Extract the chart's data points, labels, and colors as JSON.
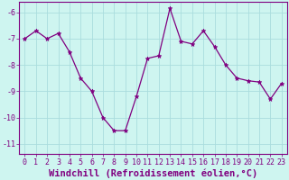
{
  "x": [
    0,
    1,
    2,
    3,
    4,
    5,
    6,
    7,
    8,
    9,
    10,
    11,
    12,
    13,
    14,
    15,
    16,
    17,
    18,
    19,
    20,
    21,
    22,
    23
  ],
  "y": [
    -7.0,
    -6.7,
    -7.0,
    -6.8,
    -7.5,
    -8.5,
    -9.0,
    -10.0,
    -10.5,
    -10.5,
    -9.2,
    -7.75,
    -7.65,
    -5.85,
    -7.1,
    -7.2,
    -6.7,
    -7.3,
    -8.0,
    -8.5,
    -8.6,
    -8.65,
    -9.3,
    -8.7
  ],
  "line_color": "#800080",
  "marker": "*",
  "marker_size": 3.5,
  "bg_color": "#cef5f0",
  "grid_color": "#aadddd",
  "xlabel": "Windchill (Refroidissement éolien,°C)",
  "ylim": [
    -11.4,
    -5.6
  ],
  "xlim": [
    -0.5,
    23.5
  ],
  "yticks": [
    -11,
    -10,
    -9,
    -8,
    -7,
    -6
  ],
  "xticks": [
    0,
    1,
    2,
    3,
    4,
    5,
    6,
    7,
    8,
    9,
    10,
    11,
    12,
    13,
    14,
    15,
    16,
    17,
    18,
    19,
    20,
    21,
    22,
    23
  ],
  "tick_color": "#800080",
  "label_color": "#800080",
  "axis_color": "#800080",
  "tick_fontsize": 6,
  "xlabel_fontsize": 7.5
}
